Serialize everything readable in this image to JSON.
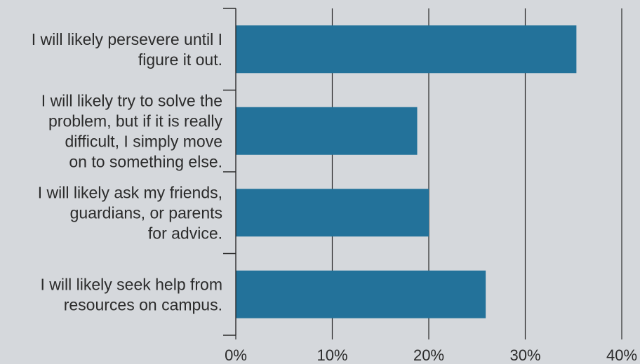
{
  "chart_data": {
    "type": "bar",
    "orientation": "horizontal",
    "title": "",
    "xlabel": "",
    "ylabel": "",
    "categories": [
      "I will likely persevere until I figure it out.",
      "I will likely try to solve the problem, but if it is really difficult, I simply move on to something else.",
      "I will likely ask my friends, guardians, or parents for advice.",
      "I will likely seek help from resources on campus."
    ],
    "category_lines": [
      [
        "I will likely persevere until I",
        "figure it out."
      ],
      [
        "I will likely try to solve the",
        "problem, but if it is really",
        "difficult, I simply move",
        "on to something else."
      ],
      [
        "I will likely ask my friends,",
        "guardians, or parents",
        "for advice."
      ],
      [
        "I will likely seek help from",
        "resources on campus."
      ]
    ],
    "values": [
      35.3,
      18.8,
      20.0,
      25.9
    ],
    "xlim": [
      0,
      40
    ],
    "ticks": [
      0,
      10,
      20,
      30,
      40
    ],
    "tick_labels": [
      "0%",
      "10%",
      "20%",
      "30%",
      "40%"
    ],
    "grid": true,
    "legend": "none",
    "bar_color": "#23729a",
    "background": "#d5d8dc"
  }
}
